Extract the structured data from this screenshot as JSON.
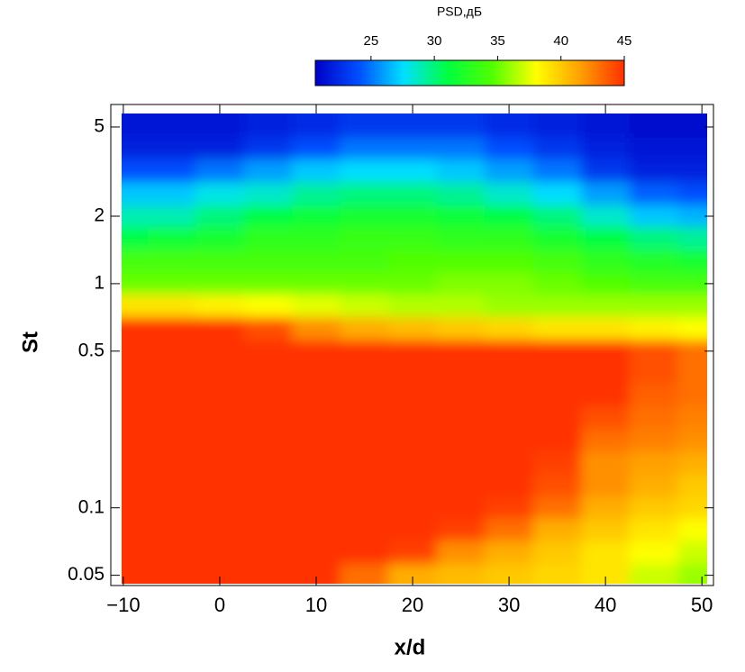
{
  "chart_data": {
    "type": "heatmap",
    "colorbar_title": "PSD,дБ",
    "x_label": "x/d",
    "y_label": "St",
    "x": [
      -10,
      -5,
      0,
      5,
      10,
      15,
      20,
      25,
      30,
      35,
      40,
      45,
      50
    ],
    "y": [
      5,
      4,
      3.2,
      2.5,
      2,
      1.6,
      1.25,
      1,
      0.8,
      0.63,
      0.5,
      0.4,
      0.32,
      0.25,
      0.2,
      0.16,
      0.125,
      0.1,
      0.08,
      0.063,
      0.05
    ],
    "z": [
      [
        21.5,
        21.5,
        21.5,
        22,
        22.5,
        23,
        23,
        23,
        22.5,
        22,
        21.5,
        21,
        21
      ],
      [
        22,
        22,
        22,
        23,
        24,
        25,
        25,
        25,
        24,
        23,
        22,
        21.5,
        21.5
      ],
      [
        24,
        24,
        25,
        26,
        27,
        27.5,
        27.5,
        27,
        26,
        25,
        23,
        22,
        22
      ],
      [
        27,
        27,
        28,
        28.5,
        29.5,
        30,
        30,
        29.5,
        28.5,
        27.5,
        26,
        24.5,
        24
      ],
      [
        29,
        29,
        30,
        31,
        31.5,
        32,
        32,
        31.5,
        31,
        30,
        28.5,
        27,
        26.5
      ],
      [
        31,
        31.5,
        32,
        33,
        33,
        33.5,
        33.5,
        33,
        33,
        32,
        31,
        30,
        29.5
      ],
      [
        34,
        34,
        34,
        34,
        34,
        34,
        34.5,
        34.5,
        34.5,
        34,
        33,
        32.5,
        32
      ],
      [
        35,
        35,
        35,
        35,
        35,
        35,
        35,
        35.5,
        35.5,
        35,
        34.5,
        34,
        34
      ],
      [
        39,
        39,
        38.5,
        38,
        37.5,
        37,
        36.5,
        36.5,
        36,
        36,
        36,
        36,
        36
      ],
      [
        45,
        45,
        45,
        44,
        42,
        41,
        40.5,
        40,
        39.5,
        39,
        39,
        38.5,
        38
      ],
      [
        45,
        45,
        45,
        45,
        45,
        45,
        45,
        45,
        45,
        45,
        45,
        44,
        43
      ],
      [
        45,
        45,
        45,
        45,
        45,
        45,
        45,
        45,
        45,
        45,
        45,
        44,
        43
      ],
      [
        45,
        45,
        45,
        45,
        45,
        45,
        45,
        45,
        45,
        45,
        45,
        43.5,
        43
      ],
      [
        45,
        45,
        45,
        45,
        45,
        45,
        45,
        45,
        45,
        45,
        44,
        43,
        42.5
      ],
      [
        45,
        45,
        45,
        45,
        45,
        45,
        45,
        45,
        45,
        45,
        43,
        42.5,
        42
      ],
      [
        45,
        45,
        45,
        45,
        45,
        45,
        45,
        45,
        45,
        44.5,
        42,
        41.5,
        41
      ],
      [
        45,
        45,
        45,
        45,
        45,
        45,
        45,
        45,
        45,
        44,
        42,
        41,
        40
      ],
      [
        45,
        45,
        45,
        45,
        45,
        45,
        45,
        45,
        44.5,
        43,
        41,
        40,
        39.5
      ],
      [
        45,
        45,
        45,
        45,
        45,
        45,
        45,
        44.5,
        43,
        41,
        40,
        39,
        38
      ],
      [
        45,
        45,
        45,
        45,
        45,
        45,
        44.5,
        42,
        41,
        40,
        39,
        38,
        37
      ],
      [
        45,
        45,
        45,
        45,
        45,
        43,
        41,
        40.5,
        40,
        39.5,
        39,
        37,
        36
      ]
    ],
    "zlim": [
      20.6,
      45
    ],
    "zticks": [
      25,
      30,
      35,
      40,
      45
    ],
    "colormap": [
      "#0000c8",
      "#0050ff",
      "#00e0ff",
      "#00ff40",
      "#50ff00",
      "#ffff00",
      "#ffa000",
      "#ff3000"
    ],
    "xlim": [
      -11.3,
      51.2
    ],
    "xticks": [
      {
        "value": -10,
        "label": "−10"
      },
      0,
      10,
      20,
      30,
      40,
      50
    ],
    "ylim": [
      0.045,
      6.3
    ],
    "y_scale": "log",
    "yticks": [
      0.05,
      0.1,
      0.5,
      1,
      2,
      5
    ]
  }
}
